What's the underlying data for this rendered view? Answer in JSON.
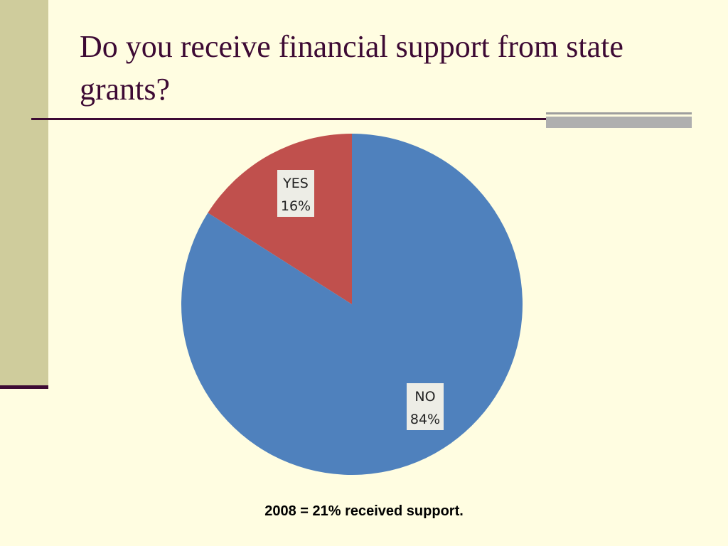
{
  "slide": {
    "title": "Do you receive financial support from state grants?",
    "footnote": "2008 = 21% received support.",
    "colors": {
      "background": "#FFFDE1",
      "accent_bar": "#CFCC9C",
      "title_text": "#3D0A34"
    }
  },
  "chart_data": {
    "type": "pie",
    "title": "",
    "slices": [
      {
        "label": "YES",
        "value": 16,
        "value_label": "16%",
        "color": "#C0504D"
      },
      {
        "label": "NO",
        "value": 84,
        "value_label": "84%",
        "color": "#4F81BD"
      }
    ],
    "start_angle_deg": 0,
    "direction": "counterclockwise",
    "data_labels": "inside slice, category and percentage"
  }
}
